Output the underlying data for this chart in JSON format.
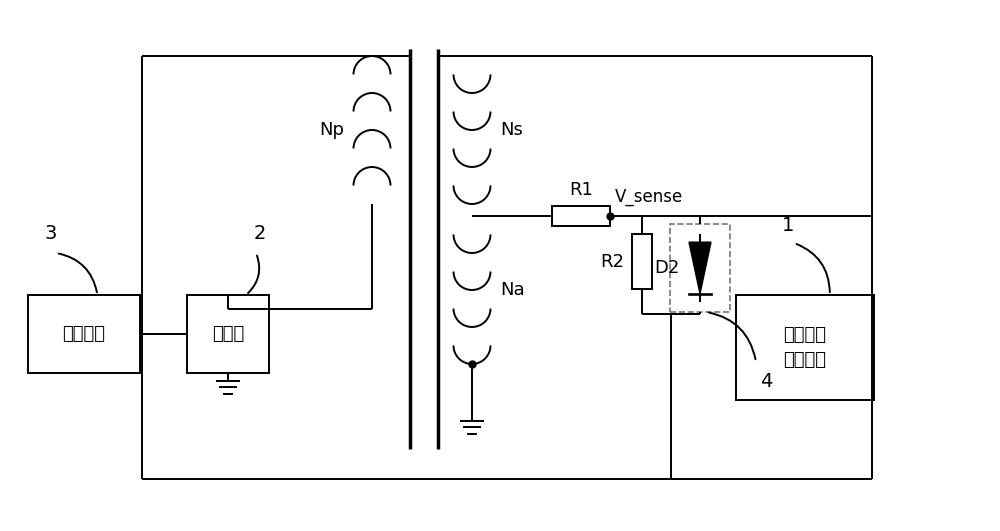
{
  "bg_color": "#ffffff",
  "line_color": "#000000",
  "font_color": "#000000",
  "lw": 1.4,
  "labels": {
    "Np": "Np",
    "Ns": "Ns",
    "Na": "Na",
    "R1": "R1",
    "R2": "R2",
    "D2": "D2",
    "V_sense": "V_sense",
    "control": "控制模块",
    "switch": "开关管",
    "feedback": "电流比较\n反馈电路",
    "label1": "1",
    "label2": "2",
    "label3": "3",
    "label4": "4"
  }
}
